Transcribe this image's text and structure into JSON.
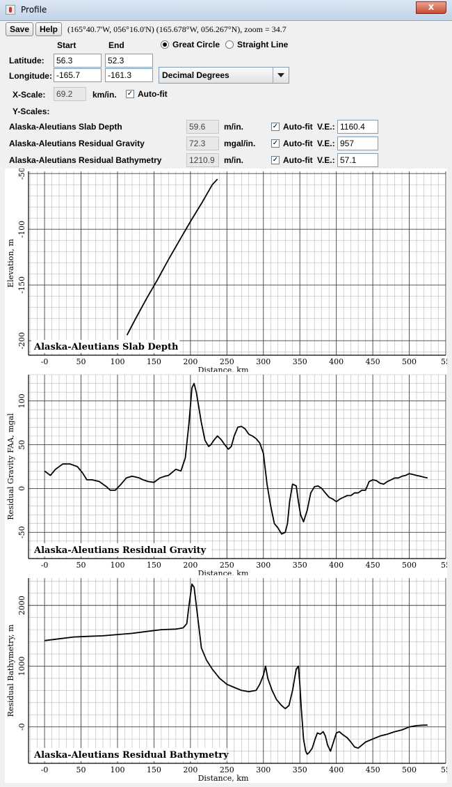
{
  "window": {
    "title": "Profile",
    "close_label": "x"
  },
  "toolbar": {
    "save_label": "Save",
    "help_label": "Help",
    "coords": "(165°40.7'W, 056°16.0'N) (165.678°W, 056.267°N), zoom = 34.7"
  },
  "form": {
    "start_header": "Start",
    "end_header": "End",
    "latitude_label": "Latitude:",
    "longitude_label": "Longitude:",
    "lat_start": "56.3",
    "lat_end": "52.3",
    "lon_start": "-165.7",
    "lon_end": "-161.3",
    "great_circle_label": "Great Circle",
    "straight_line_label": "Straight Line",
    "units_selected": "Decimal Degrees",
    "xscale_label": "X-Scale:",
    "xscale_value": "69.2",
    "xscale_unit": "km/in.",
    "autofit_label": "Auto-fit",
    "yscales_label": "Y-Scales:",
    "ve_label": "V.E.:",
    "layers": [
      {
        "name": "Alaska-Aleutians Slab Depth",
        "scale": "59.6",
        "unit": "m/in.",
        "ve": "1160.4"
      },
      {
        "name": "Alaska-Aleutians Residual Gravity",
        "scale": "72.3",
        "unit": "mgal/in.",
        "ve": "957"
      },
      {
        "name": "Alaska-Aleutians Residual Bathymetry",
        "scale": "1210.9",
        "unit": "m/in.",
        "ve": "57.1"
      }
    ]
  },
  "chart_data": [
    {
      "type": "line",
      "title": "Alaska-Aleutians Slab Depth",
      "xlabel": "Distance, km",
      "ylabel": "Elevation, m",
      "xlim": [
        -22,
        550
      ],
      "ylim": [
        -213,
        -48
      ],
      "x_ticks": [
        "-0",
        "50",
        "100",
        "150",
        "200",
        "250",
        "300",
        "350",
        "400",
        "450",
        "500",
        "55"
      ],
      "y_ticks": [
        {
          "v": -50,
          "t": "-50"
        },
        {
          "v": -100,
          "t": "-100"
        },
        {
          "v": -150,
          "t": "-150"
        },
        {
          "v": -200,
          "t": "-200"
        }
      ],
      "x": [
        113,
        125,
        140,
        155,
        170,
        185,
        200,
        215,
        230,
        237
      ],
      "y": [
        -195,
        -180,
        -162,
        -145,
        -127,
        -110,
        -93,
        -77,
        -60,
        -55
      ]
    },
    {
      "type": "line",
      "title": "Alaska-Aleutians Residual Gravity",
      "xlabel": "Distance, km",
      "ylabel": "Residual Gravity FAA, mgal",
      "xlim": [
        -22,
        550
      ],
      "ylim": [
        -80,
        130
      ],
      "x_ticks": [
        "-0",
        "50",
        "100",
        "150",
        "200",
        "250",
        "300",
        "350",
        "400",
        "450",
        "500",
        "55"
      ],
      "y_ticks": [
        {
          "v": 100,
          "t": "100"
        },
        {
          "v": 50,
          "t": "50"
        },
        {
          "v": 0,
          "t": "0"
        },
        {
          "v": -50,
          "t": "-50"
        }
      ],
      "x": [
        0,
        8,
        15,
        25,
        35,
        45,
        52,
        58,
        65,
        75,
        85,
        90,
        97,
        105,
        112,
        120,
        130,
        135,
        142,
        150,
        158,
        165,
        170,
        180,
        187,
        193,
        198,
        202,
        205,
        208,
        212,
        215,
        220,
        225,
        228,
        232,
        237,
        242,
        247,
        252,
        256,
        260,
        265,
        270,
        275,
        280,
        285,
        290,
        295,
        300,
        305,
        310,
        315,
        320,
        325,
        330,
        333,
        336,
        340,
        345,
        348,
        351,
        355,
        360,
        365,
        370,
        375,
        380,
        385,
        390,
        395,
        400,
        405,
        410,
        415,
        420,
        425,
        430,
        435,
        440,
        445,
        450,
        455,
        460,
        465,
        470,
        475,
        480,
        485,
        490,
        495,
        500,
        505,
        510,
        515,
        520,
        525
      ],
      "y": [
        20,
        15,
        22,
        28,
        28,
        25,
        18,
        10,
        10,
        8,
        2,
        -2,
        -2,
        5,
        12,
        14,
        12,
        10,
        8,
        7,
        12,
        14,
        15,
        22,
        20,
        35,
        75,
        115,
        120,
        110,
        90,
        75,
        55,
        48,
        50,
        55,
        60,
        56,
        50,
        45,
        48,
        60,
        70,
        71,
        68,
        62,
        60,
        57,
        52,
        40,
        5,
        -20,
        -40,
        -45,
        -52,
        -50,
        -40,
        -15,
        5,
        3,
        -15,
        -30,
        -38,
        -25,
        -5,
        2,
        3,
        0,
        -5,
        -10,
        -12,
        -15,
        -12,
        -10,
        -8,
        -8,
        -5,
        -5,
        -2,
        -2,
        8,
        10,
        9,
        6,
        5,
        8,
        10,
        12,
        12,
        14,
        15,
        17,
        16,
        15,
        14,
        13,
        12
      ],
      "note_ylim_min": -80
    },
    {
      "type": "line",
      "title": "Alaska-Aleutians Residual Bathymetry",
      "xlabel": "Distance, km",
      "ylabel": "Residual Bathymetry, m",
      "xlim": [
        -22,
        550
      ],
      "ylim": [
        -600,
        2450
      ],
      "x_ticks": [
        "-0",
        "50",
        "100",
        "150",
        "200",
        "250",
        "300",
        "350",
        "400",
        "450",
        "500",
        "55"
      ],
      "y_ticks": [
        {
          "v": 2000,
          "t": "2000"
        },
        {
          "v": 1000,
          "t": "1000"
        },
        {
          "v": 0,
          "t": "-0"
        }
      ],
      "x": [
        0,
        20,
        40,
        60,
        80,
        100,
        120,
        140,
        160,
        180,
        190,
        195,
        198,
        202,
        205,
        208,
        212,
        215,
        222,
        230,
        240,
        250,
        260,
        270,
        280,
        290,
        295,
        300,
        303,
        306,
        312,
        318,
        325,
        330,
        335,
        340,
        345,
        348,
        350,
        352,
        355,
        358,
        360,
        363,
        367,
        371,
        374,
        378,
        382,
        385,
        388,
        392,
        396,
        400,
        404,
        408,
        415,
        420,
        425,
        430,
        435,
        440,
        450,
        460,
        470,
        480,
        490,
        500,
        510,
        520,
        525
      ],
      "y": [
        1420,
        1450,
        1480,
        1490,
        1500,
        1520,
        1540,
        1570,
        1600,
        1610,
        1630,
        1700,
        2000,
        2350,
        2300,
        2000,
        1600,
        1300,
        1100,
        950,
        800,
        700,
        650,
        600,
        580,
        600,
        700,
        850,
        1000,
        800,
        600,
        450,
        350,
        300,
        350,
        600,
        950,
        1000,
        700,
        300,
        -200,
        -400,
        -450,
        -420,
        -350,
        -200,
        -100,
        -120,
        -80,
        -150,
        -300,
        -400,
        -250,
        -100,
        -80,
        -120,
        -180,
        -250,
        -330,
        -350,
        -300,
        -250,
        -200,
        -150,
        -120,
        -80,
        -50,
        0,
        20,
        30,
        30
      ]
    }
  ]
}
